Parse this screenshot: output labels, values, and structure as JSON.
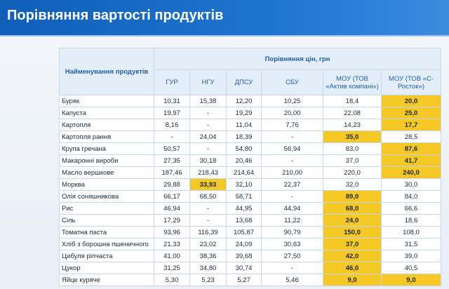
{
  "title": "Порівняння вартості продуктів",
  "table": {
    "name_header": "Найменування продуктів",
    "group_header": "Порівняння цін, грн",
    "columns": [
      "ГУР",
      "НГУ",
      "ДПСУ",
      "СБУ",
      "МОУ (ТОВ «Актив компані»)",
      "МОУ (ТОВ «С-Росток»)"
    ],
    "rows": [
      {
        "name": "Буряк",
        "cells": [
          "10,31",
          "15,38",
          "12,20",
          "10,25",
          "18,4",
          "20,0"
        ],
        "highlighted": [
          5
        ]
      },
      {
        "name": "Капуста",
        "cells": [
          "19,97",
          "-",
          "19,29",
          "20,00",
          "22,08",
          "25,0"
        ],
        "highlighted": [
          5
        ]
      },
      {
        "name": "Картопля",
        "cells": [
          "8,16",
          "-",
          "11,04",
          "7,76",
          "14,23",
          "17,7"
        ],
        "highlighted": [
          5
        ]
      },
      {
        "name": "Картопля рання",
        "cells": [
          "-",
          "24,04",
          "18,39",
          "-",
          "35,0",
          "28,5"
        ],
        "highlighted": [
          4
        ]
      },
      {
        "name": "Крупа гречана",
        "cells": [
          "50,57",
          "-",
          "54,80",
          "56,94",
          "83,0",
          "87,6"
        ],
        "highlighted": [
          5
        ]
      },
      {
        "name": "Макаронні вироби",
        "cells": [
          "27,35",
          "30,18",
          "20,46",
          "-",
          "37,0",
          "41,7"
        ],
        "highlighted": [
          5
        ]
      },
      {
        "name": "Масло вершкове",
        "cells": [
          "187,46",
          "218,43",
          "214,64",
          "210,00",
          "220,0",
          "240,0"
        ],
        "highlighted": [
          5
        ]
      },
      {
        "name": "Морква",
        "cells": [
          "29,88",
          "33,93",
          "32,10",
          "22,37",
          "32,0",
          "30,0"
        ],
        "highlighted": [
          1
        ]
      },
      {
        "name": "Олія соняшникова",
        "cells": [
          "66,17",
          "68,50",
          "58,71",
          "-",
          "89,0",
          "84,0"
        ],
        "highlighted": [
          4
        ]
      },
      {
        "name": "Рис",
        "cells": [
          "46,94",
          "-",
          "44,95",
          "44,94",
          "68,0",
          "66,6"
        ],
        "highlighted": [
          4
        ]
      },
      {
        "name": "Сіль",
        "cells": [
          "17,29",
          "-",
          "13,68",
          "11,22",
          "24,0",
          "18,6"
        ],
        "highlighted": [
          4
        ]
      },
      {
        "name": "Томатна паста",
        "cells": [
          "93,96",
          "116,39",
          "105,87",
          "90,79",
          "150,0",
          "108,0"
        ],
        "highlighted": [
          4
        ]
      },
      {
        "name": "Хліб з борошна пшеничного",
        "cells": [
          "21,33",
          "23,02",
          "24,09",
          "30,63",
          "37,0",
          "31,5"
        ],
        "highlighted": [
          4
        ]
      },
      {
        "name": "Цибуля ріпчаста",
        "cells": [
          "41,00",
          "38,36",
          "39,68",
          "27,50",
          "42,0",
          "39,0"
        ],
        "highlighted": [
          4
        ]
      },
      {
        "name": "Цукор",
        "cells": [
          "31,25",
          "34,80",
          "30,74",
          "-",
          "46,0",
          "40,5"
        ],
        "highlighted": [
          4
        ]
      },
      {
        "name": "Яйце куряче",
        "cells": [
          "5,30",
          "5,23",
          "5,27",
          "5,46",
          "9,0",
          "9,0"
        ],
        "highlighted": [
          4,
          5
        ]
      }
    ]
  }
}
